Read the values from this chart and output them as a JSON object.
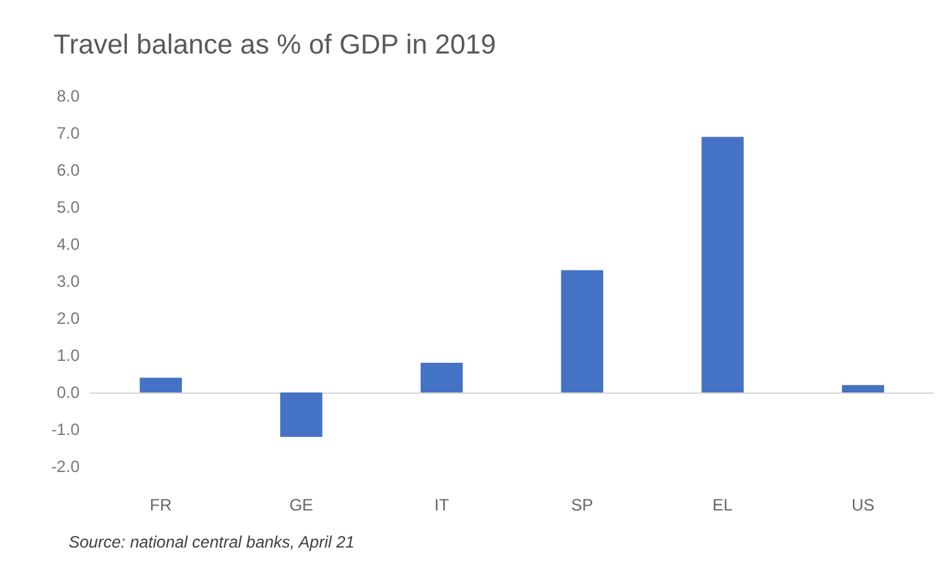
{
  "chart_data": {
    "type": "bar",
    "title": "Travel balance as % of GDP in 2019",
    "categories": [
      "FR",
      "GE",
      "IT",
      "SP",
      "EL",
      "US"
    ],
    "values": [
      0.4,
      -1.2,
      0.8,
      3.3,
      6.9,
      0.2
    ],
    "color": "#4472c4",
    "ylim": [
      -2,
      8
    ],
    "yticks": [
      {
        "value": -2,
        "label": "-2.0"
      },
      {
        "value": -1,
        "label": "-1.0"
      },
      {
        "value": 0,
        "label": "0.0"
      },
      {
        "value": 1,
        "label": "1.0"
      },
      {
        "value": 2,
        "label": "2.0"
      },
      {
        "value": 3,
        "label": "3.0"
      },
      {
        "value": 4,
        "label": "4.0"
      },
      {
        "value": 5,
        "label": "5.0"
      },
      {
        "value": 6,
        "label": "6.0"
      },
      {
        "value": 7,
        "label": "7.0"
      },
      {
        "value": 8,
        "label": "8.0"
      }
    ],
    "annotations": [
      "Source: national central banks, April 21"
    ]
  }
}
